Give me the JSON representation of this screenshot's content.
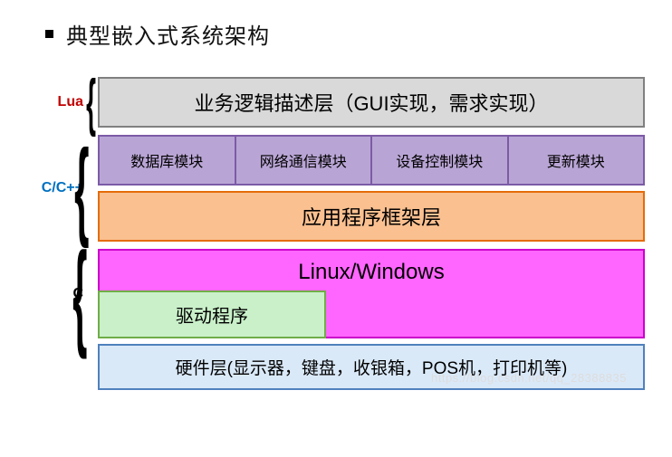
{
  "title": "典型嵌入式系统架构",
  "layers": {
    "lua": {
      "label": "Lua",
      "label_color": "#c00000",
      "box": {
        "text": "业务逻辑描述层（GUI实现，需求实现）",
        "bg": "#d9d9d9",
        "border": "#808080",
        "fontsize": 22
      }
    },
    "ccpp": {
      "label": "C/C++",
      "label_color": "#0070c0",
      "modules": {
        "bg": "#b9a5d5",
        "border": "#7c5ba6",
        "items": [
          "数据库模块",
          "网络通信模块",
          "设备控制模块",
          "更新模块"
        ],
        "fontsize": 16
      },
      "framework": {
        "text": "应用程序框架层",
        "bg": "#fac090",
        "border": "#e46c0a",
        "fontsize": 22
      }
    },
    "c": {
      "label": "C",
      "label_color": "#000000",
      "os": {
        "text": "Linux/Windows",
        "bg": "#ff66ff",
        "border": "#cc00cc",
        "fontsize": 24
      },
      "driver": {
        "text": "驱动程序",
        "bg": "#c9f0c9",
        "border": "#70ad47",
        "fontsize": 20
      }
    },
    "hardware": {
      "text": "硬件层(显示器，键盘，收银箱，POS机，打印机等)",
      "bg": "#dae9f8",
      "border": "#4f81bd",
      "fontsize": 19
    }
  },
  "watermark": "https://blog.csdn.net/qq_28388835"
}
